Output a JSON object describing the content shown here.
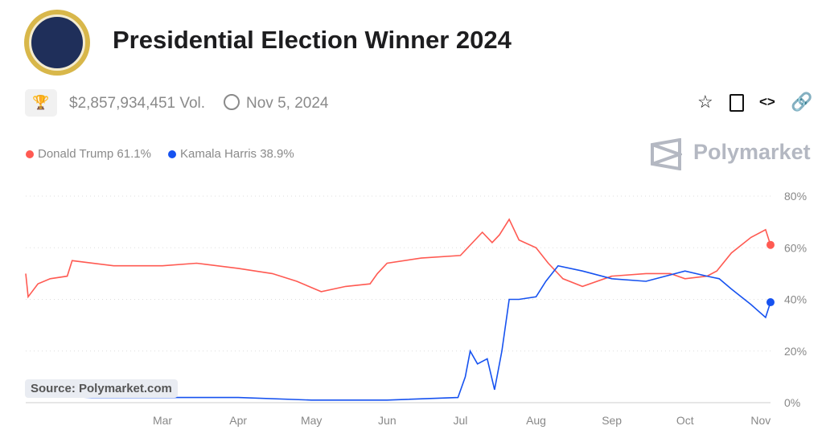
{
  "header": {
    "title": "Presidential Election Winner 2024",
    "volume": "$2,857,934,451 Vol.",
    "end_date": "Nov 5, 2024",
    "brand": "Polymarket"
  },
  "icons": [
    "trophy-icon",
    "clock-icon",
    "star-icon",
    "document-icon",
    "code-icon",
    "link-icon"
  ],
  "source": "Source: Polymarket.com",
  "legend": [
    {
      "label": "Donald Trump 61.1%",
      "color": "#ff5a52"
    },
    {
      "label": "Kamala Harris 38.9%",
      "color": "#1652f0"
    }
  ],
  "chart_data": {
    "type": "line",
    "x_ticks": [
      "Mar",
      "Apr",
      "May",
      "Jun",
      "Jul",
      "Aug",
      "Sep",
      "Oct",
      "Nov"
    ],
    "x_tick_dates": [
      "2024-03-01",
      "2024-04-01",
      "2024-05-01",
      "2024-06-01",
      "2024-07-01",
      "2024-08-01",
      "2024-09-01",
      "2024-10-01",
      "2024-11-01"
    ],
    "xlim": [
      "2024-01-05",
      "2024-11-05"
    ],
    "y_ticks": [
      "0%",
      "20%",
      "40%",
      "60%",
      "80%"
    ],
    "ylim": [
      0,
      80
    ],
    "grid": "horizontal dotted",
    "legend_position": "top-left",
    "series": [
      {
        "name": "Donald Trump",
        "color": "#ff5a52",
        "points": [
          [
            "2024-01-05",
            50
          ],
          [
            "2024-01-06",
            41
          ],
          [
            "2024-01-10",
            46
          ],
          [
            "2024-01-15",
            48
          ],
          [
            "2024-01-22",
            49
          ],
          [
            "2024-01-24",
            55
          ],
          [
            "2024-02-10",
            53
          ],
          [
            "2024-03-01",
            53
          ],
          [
            "2024-03-15",
            54
          ],
          [
            "2024-04-01",
            52
          ],
          [
            "2024-04-15",
            50
          ],
          [
            "2024-04-25",
            47
          ],
          [
            "2024-05-05",
            43
          ],
          [
            "2024-05-15",
            45
          ],
          [
            "2024-05-25",
            46
          ],
          [
            "2024-05-28",
            50
          ],
          [
            "2024-06-01",
            54
          ],
          [
            "2024-06-15",
            56
          ],
          [
            "2024-07-01",
            57
          ],
          [
            "2024-07-05",
            61
          ],
          [
            "2024-07-10",
            66
          ],
          [
            "2024-07-14",
            62
          ],
          [
            "2024-07-17",
            65
          ],
          [
            "2024-07-21",
            71
          ],
          [
            "2024-07-25",
            63
          ],
          [
            "2024-08-01",
            60
          ],
          [
            "2024-08-06",
            54
          ],
          [
            "2024-08-12",
            48
          ],
          [
            "2024-08-20",
            45
          ],
          [
            "2024-09-01",
            49
          ],
          [
            "2024-09-15",
            50
          ],
          [
            "2024-09-25",
            50
          ],
          [
            "2024-10-01",
            48
          ],
          [
            "2024-10-10",
            49
          ],
          [
            "2024-10-14",
            51
          ],
          [
            "2024-10-20",
            58
          ],
          [
            "2024-10-28",
            64
          ],
          [
            "2024-11-03",
            67
          ],
          [
            "2024-11-05",
            61.1
          ]
        ]
      },
      {
        "name": "Kamala Harris",
        "color": "#1652f0",
        "points": [
          [
            "2024-01-05",
            3
          ],
          [
            "2024-02-01",
            2
          ],
          [
            "2024-03-01",
            2
          ],
          [
            "2024-04-01",
            2
          ],
          [
            "2024-05-01",
            1
          ],
          [
            "2024-06-01",
            1
          ],
          [
            "2024-06-30",
            2
          ],
          [
            "2024-07-03",
            10
          ],
          [
            "2024-07-05",
            20
          ],
          [
            "2024-07-08",
            15
          ],
          [
            "2024-07-12",
            17
          ],
          [
            "2024-07-15",
            5
          ],
          [
            "2024-07-18",
            20
          ],
          [
            "2024-07-21",
            40
          ],
          [
            "2024-07-25",
            40
          ],
          [
            "2024-08-01",
            41
          ],
          [
            "2024-08-05",
            47
          ],
          [
            "2024-08-10",
            53
          ],
          [
            "2024-08-20",
            51
          ],
          [
            "2024-09-01",
            48
          ],
          [
            "2024-09-15",
            47
          ],
          [
            "2024-10-01",
            51
          ],
          [
            "2024-10-10",
            49
          ],
          [
            "2024-10-15",
            48
          ],
          [
            "2024-10-20",
            44
          ],
          [
            "2024-10-28",
            38
          ],
          [
            "2024-11-03",
            33
          ],
          [
            "2024-11-05",
            38.9
          ]
        ]
      }
    ]
  }
}
